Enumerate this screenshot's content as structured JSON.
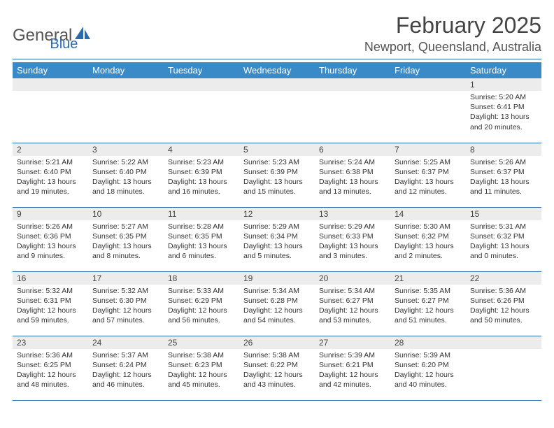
{
  "logo": {
    "text1": "General",
    "text2": "Blue",
    "icon_color": "#2a6bb0"
  },
  "title": "February 2025",
  "location": "Newport, Queensland, Australia",
  "colors": {
    "header_bg": "#3a8ac8",
    "border": "#2a6bb0",
    "daynum_bg": "#ececec"
  },
  "weekdays": [
    "Sunday",
    "Monday",
    "Tuesday",
    "Wednesday",
    "Thursday",
    "Friday",
    "Saturday"
  ],
  "weeks": [
    [
      {
        "n": "",
        "sunrise": "",
        "sunset": "",
        "daylight": ""
      },
      {
        "n": "",
        "sunrise": "",
        "sunset": "",
        "daylight": ""
      },
      {
        "n": "",
        "sunrise": "",
        "sunset": "",
        "daylight": ""
      },
      {
        "n": "",
        "sunrise": "",
        "sunset": "",
        "daylight": ""
      },
      {
        "n": "",
        "sunrise": "",
        "sunset": "",
        "daylight": ""
      },
      {
        "n": "",
        "sunrise": "",
        "sunset": "",
        "daylight": ""
      },
      {
        "n": "1",
        "sunrise": "Sunrise: 5:20 AM",
        "sunset": "Sunset: 6:41 PM",
        "daylight": "Daylight: 13 hours and 20 minutes."
      }
    ],
    [
      {
        "n": "2",
        "sunrise": "Sunrise: 5:21 AM",
        "sunset": "Sunset: 6:40 PM",
        "daylight": "Daylight: 13 hours and 19 minutes."
      },
      {
        "n": "3",
        "sunrise": "Sunrise: 5:22 AM",
        "sunset": "Sunset: 6:40 PM",
        "daylight": "Daylight: 13 hours and 18 minutes."
      },
      {
        "n": "4",
        "sunrise": "Sunrise: 5:23 AM",
        "sunset": "Sunset: 6:39 PM",
        "daylight": "Daylight: 13 hours and 16 minutes."
      },
      {
        "n": "5",
        "sunrise": "Sunrise: 5:23 AM",
        "sunset": "Sunset: 6:39 PM",
        "daylight": "Daylight: 13 hours and 15 minutes."
      },
      {
        "n": "6",
        "sunrise": "Sunrise: 5:24 AM",
        "sunset": "Sunset: 6:38 PM",
        "daylight": "Daylight: 13 hours and 13 minutes."
      },
      {
        "n": "7",
        "sunrise": "Sunrise: 5:25 AM",
        "sunset": "Sunset: 6:37 PM",
        "daylight": "Daylight: 13 hours and 12 minutes."
      },
      {
        "n": "8",
        "sunrise": "Sunrise: 5:26 AM",
        "sunset": "Sunset: 6:37 PM",
        "daylight": "Daylight: 13 hours and 11 minutes."
      }
    ],
    [
      {
        "n": "9",
        "sunrise": "Sunrise: 5:26 AM",
        "sunset": "Sunset: 6:36 PM",
        "daylight": "Daylight: 13 hours and 9 minutes."
      },
      {
        "n": "10",
        "sunrise": "Sunrise: 5:27 AM",
        "sunset": "Sunset: 6:35 PM",
        "daylight": "Daylight: 13 hours and 8 minutes."
      },
      {
        "n": "11",
        "sunrise": "Sunrise: 5:28 AM",
        "sunset": "Sunset: 6:35 PM",
        "daylight": "Daylight: 13 hours and 6 minutes."
      },
      {
        "n": "12",
        "sunrise": "Sunrise: 5:29 AM",
        "sunset": "Sunset: 6:34 PM",
        "daylight": "Daylight: 13 hours and 5 minutes."
      },
      {
        "n": "13",
        "sunrise": "Sunrise: 5:29 AM",
        "sunset": "Sunset: 6:33 PM",
        "daylight": "Daylight: 13 hours and 3 minutes."
      },
      {
        "n": "14",
        "sunrise": "Sunrise: 5:30 AM",
        "sunset": "Sunset: 6:32 PM",
        "daylight": "Daylight: 13 hours and 2 minutes."
      },
      {
        "n": "15",
        "sunrise": "Sunrise: 5:31 AM",
        "sunset": "Sunset: 6:32 PM",
        "daylight": "Daylight: 13 hours and 0 minutes."
      }
    ],
    [
      {
        "n": "16",
        "sunrise": "Sunrise: 5:32 AM",
        "sunset": "Sunset: 6:31 PM",
        "daylight": "Daylight: 12 hours and 59 minutes."
      },
      {
        "n": "17",
        "sunrise": "Sunrise: 5:32 AM",
        "sunset": "Sunset: 6:30 PM",
        "daylight": "Daylight: 12 hours and 57 minutes."
      },
      {
        "n": "18",
        "sunrise": "Sunrise: 5:33 AM",
        "sunset": "Sunset: 6:29 PM",
        "daylight": "Daylight: 12 hours and 56 minutes."
      },
      {
        "n": "19",
        "sunrise": "Sunrise: 5:34 AM",
        "sunset": "Sunset: 6:28 PM",
        "daylight": "Daylight: 12 hours and 54 minutes."
      },
      {
        "n": "20",
        "sunrise": "Sunrise: 5:34 AM",
        "sunset": "Sunset: 6:27 PM",
        "daylight": "Daylight: 12 hours and 53 minutes."
      },
      {
        "n": "21",
        "sunrise": "Sunrise: 5:35 AM",
        "sunset": "Sunset: 6:27 PM",
        "daylight": "Daylight: 12 hours and 51 minutes."
      },
      {
        "n": "22",
        "sunrise": "Sunrise: 5:36 AM",
        "sunset": "Sunset: 6:26 PM",
        "daylight": "Daylight: 12 hours and 50 minutes."
      }
    ],
    [
      {
        "n": "23",
        "sunrise": "Sunrise: 5:36 AM",
        "sunset": "Sunset: 6:25 PM",
        "daylight": "Daylight: 12 hours and 48 minutes."
      },
      {
        "n": "24",
        "sunrise": "Sunrise: 5:37 AM",
        "sunset": "Sunset: 6:24 PM",
        "daylight": "Daylight: 12 hours and 46 minutes."
      },
      {
        "n": "25",
        "sunrise": "Sunrise: 5:38 AM",
        "sunset": "Sunset: 6:23 PM",
        "daylight": "Daylight: 12 hours and 45 minutes."
      },
      {
        "n": "26",
        "sunrise": "Sunrise: 5:38 AM",
        "sunset": "Sunset: 6:22 PM",
        "daylight": "Daylight: 12 hours and 43 minutes."
      },
      {
        "n": "27",
        "sunrise": "Sunrise: 5:39 AM",
        "sunset": "Sunset: 6:21 PM",
        "daylight": "Daylight: 12 hours and 42 minutes."
      },
      {
        "n": "28",
        "sunrise": "Sunrise: 5:39 AM",
        "sunset": "Sunset: 6:20 PM",
        "daylight": "Daylight: 12 hours and 40 minutes."
      },
      {
        "n": "",
        "sunrise": "",
        "sunset": "",
        "daylight": ""
      }
    ]
  ]
}
